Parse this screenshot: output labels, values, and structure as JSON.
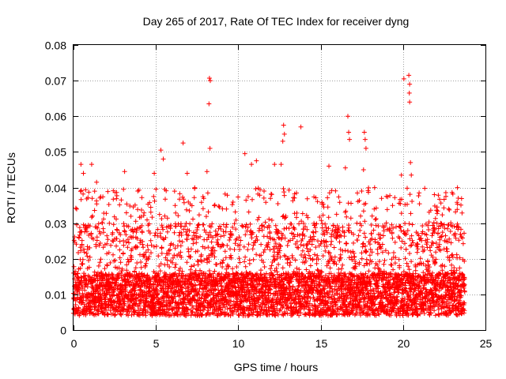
{
  "chart_data": {
    "type": "scatter",
    "title": "Day 265 of 2017, Rate Of TEC Index for receiver dyng",
    "xlabel": "GPS time / hours",
    "ylabel": "ROTI / TECUs",
    "xlim": [
      0,
      25
    ],
    "ylim": [
      0,
      0.08
    ],
    "grid": true,
    "marker": "+",
    "color": "#ff0000",
    "x_ticks": [
      "0",
      "5",
      "10",
      "15",
      "20",
      "25"
    ],
    "y_ticks": [
      "0",
      "0.01",
      "0.02",
      "0.03",
      "0.04",
      "0.05",
      "0.06",
      "0.07",
      "0.08"
    ],
    "data_x_range": [
      0,
      23.75
    ],
    "baseline_typical": [
      0.004,
      0.016
    ],
    "series": [
      {
        "name": "ROTI",
        "note": "dense cloud of ~5000 points sampled every ~0.005 h; values below are the visible peaks and outliers",
        "peaks": [
          {
            "x": 0.45,
            "y": 0.0465
          },
          {
            "x": 0.6,
            "y": 0.044
          },
          {
            "x": 1.1,
            "y": 0.0465
          },
          {
            "x": 1.4,
            "y": 0.0415
          },
          {
            "x": 3.1,
            "y": 0.0445
          },
          {
            "x": 3.9,
            "y": 0.039
          },
          {
            "x": 4.9,
            "y": 0.044
          },
          {
            "x": 5.3,
            "y": 0.0505
          },
          {
            "x": 5.45,
            "y": 0.048
          },
          {
            "x": 6.65,
            "y": 0.0525
          },
          {
            "x": 6.9,
            "y": 0.044
          },
          {
            "x": 8.1,
            "y": 0.0445
          },
          {
            "x": 8.25,
            "y": 0.0707
          },
          {
            "x": 8.3,
            "y": 0.07
          },
          {
            "x": 8.22,
            "y": 0.0635
          },
          {
            "x": 8.28,
            "y": 0.051
          },
          {
            "x": 10.4,
            "y": 0.0495
          },
          {
            "x": 10.8,
            "y": 0.0465
          },
          {
            "x": 11.1,
            "y": 0.0475
          },
          {
            "x": 12.2,
            "y": 0.0465
          },
          {
            "x": 12.75,
            "y": 0.0575
          },
          {
            "x": 12.8,
            "y": 0.055
          },
          {
            "x": 12.7,
            "y": 0.053
          },
          {
            "x": 12.6,
            "y": 0.0465
          },
          {
            "x": 13.8,
            "y": 0.057
          },
          {
            "x": 15.5,
            "y": 0.046
          },
          {
            "x": 16.5,
            "y": 0.0455
          },
          {
            "x": 16.65,
            "y": 0.06
          },
          {
            "x": 16.7,
            "y": 0.0555
          },
          {
            "x": 16.75,
            "y": 0.0535
          },
          {
            "x": 17.65,
            "y": 0.0555
          },
          {
            "x": 17.7,
            "y": 0.0535
          },
          {
            "x": 17.75,
            "y": 0.051
          },
          {
            "x": 17.6,
            "y": 0.045
          },
          {
            "x": 19.9,
            "y": 0.0435
          },
          {
            "x": 20.05,
            "y": 0.0705
          },
          {
            "x": 20.35,
            "y": 0.0715
          },
          {
            "x": 20.4,
            "y": 0.069
          },
          {
            "x": 20.38,
            "y": 0.0665
          },
          {
            "x": 20.4,
            "y": 0.064
          },
          {
            "x": 20.45,
            "y": 0.047
          },
          {
            "x": 20.5,
            "y": 0.0435
          },
          {
            "x": 21.9,
            "y": 0.038
          },
          {
            "x": 22.6,
            "y": 0.0375
          },
          {
            "x": 23.35,
            "y": 0.037
          }
        ]
      }
    ]
  }
}
